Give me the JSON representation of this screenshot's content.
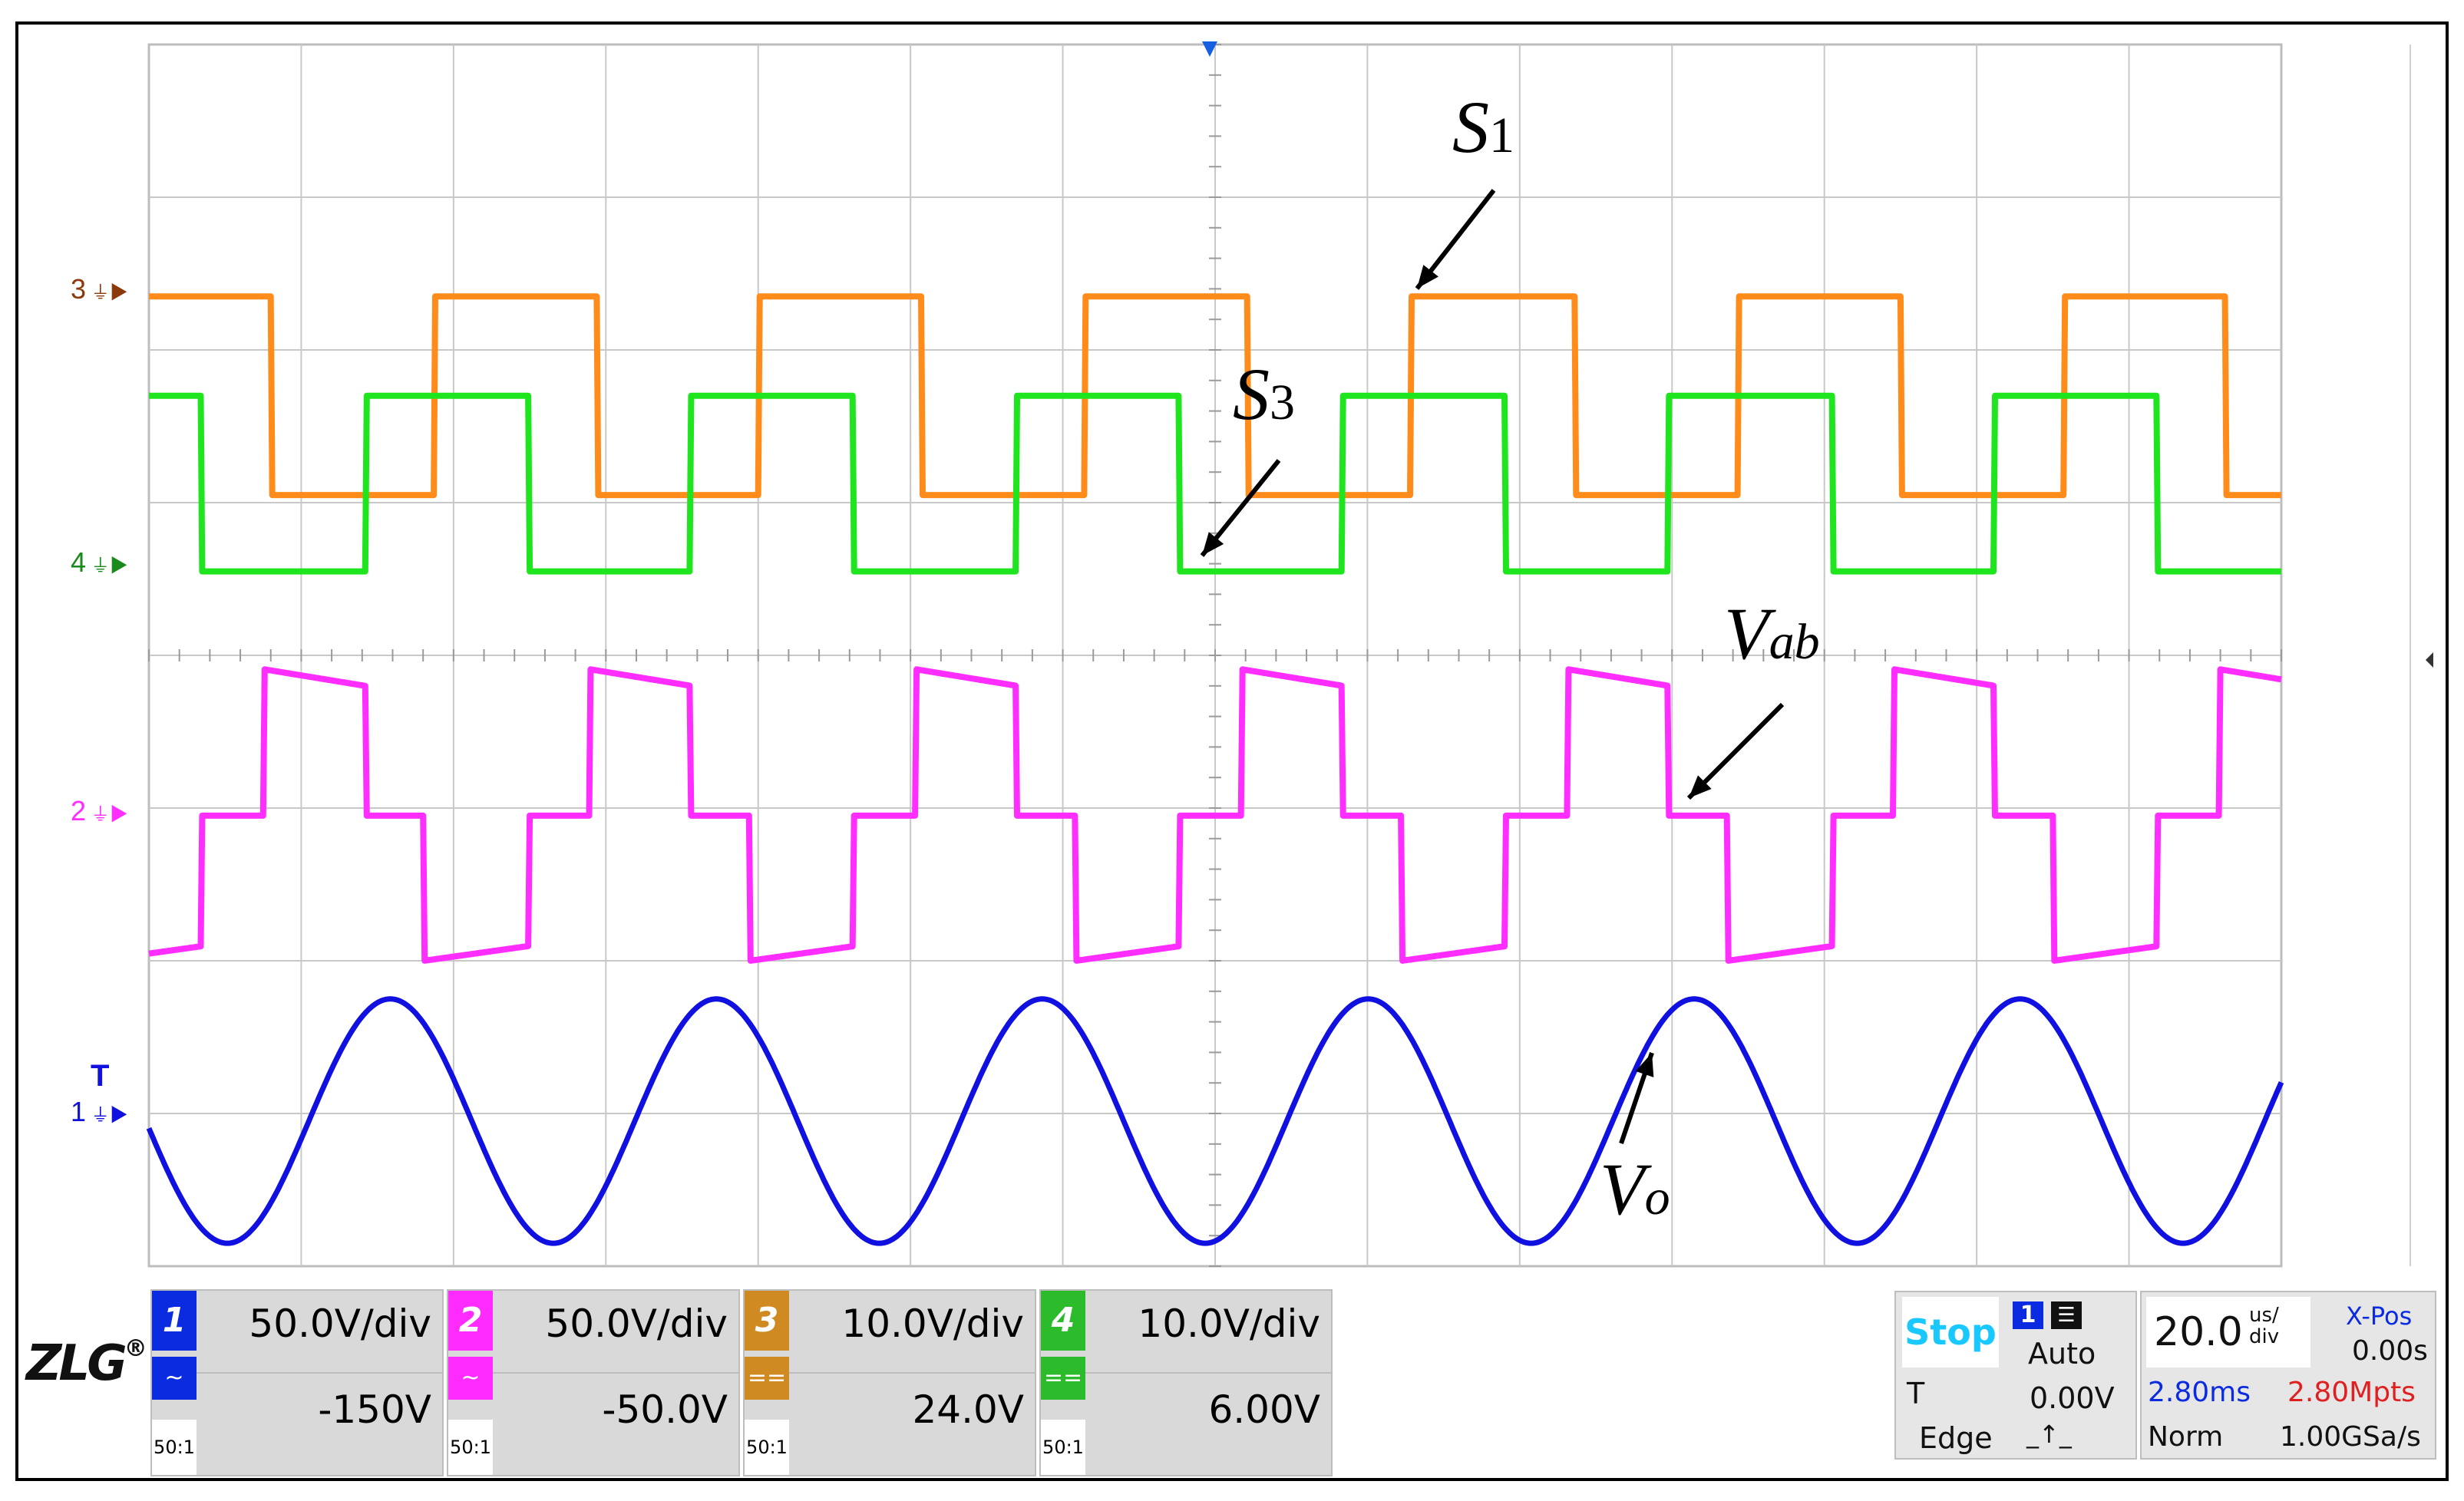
{
  "chart_data": {
    "type": "line",
    "title": "",
    "grid": true,
    "x_divisions": 14,
    "y_divisions": 8,
    "time_per_div_us": 20.0,
    "period_divisions": 2.14,
    "series": [
      {
        "name": "S1",
        "channel": "3",
        "color": "#ff8c1a",
        "kind": "square",
        "ref_division": 1.65,
        "low_div": 1.65,
        "high_div": 2.95,
        "phase_div": 0.8,
        "duty": 0.5
      },
      {
        "name": "S3",
        "channel": "4",
        "color": "#1ee51e",
        "kind": "square",
        "ref_division": 3.45,
        "low_div": 3.45,
        "high_div": 2.3,
        "phase_div": 0.35,
        "duty": 0.5,
        "inverted": true
      },
      {
        "name": "Vab",
        "channel": "2",
        "color": "#ff2dff",
        "kind": "three-level",
        "ref_division": 5.05,
        "levels_div": [
          4.1,
          5.05,
          6.0
        ],
        "phase_div": 0.35
      },
      {
        "name": "Vo",
        "channel": "1",
        "color": "#1010e0",
        "kind": "sine",
        "ref_division": 7.05,
        "amplitude_div": 0.8,
        "center_div": 7.05,
        "phase_div": 1.05
      }
    ],
    "annotations": [
      {
        "label": "S",
        "sub": "1"
      },
      {
        "label": "S",
        "sub": "3"
      },
      {
        "label": "V",
        "sub": "ab"
      },
      {
        "label": "V",
        "sub": "o"
      }
    ]
  },
  "channel_labels": [
    "3",
    "4",
    "2",
    "1"
  ],
  "trigger_marker": "T",
  "channels": [
    {
      "num": "1",
      "color": "#0a2be0",
      "scale": "50.0V/div",
      "offset": "-150V",
      "probe": "50:1",
      "coupling": "~"
    },
    {
      "num": "2",
      "color": "#ff2bff",
      "scale": "50.0V/div",
      "offset": "-50.0V",
      "probe": "50:1",
      "coupling": "~"
    },
    {
      "num": "3",
      "color": "#d08a22",
      "scale": "10.0V/div",
      "offset": "24.0V",
      "probe": "50:1",
      "coupling": "=="
    },
    {
      "num": "4",
      "color": "#2bbb2b",
      "scale": "10.0V/div",
      "offset": "6.00V",
      "probe": "50:1",
      "coupling": "=="
    }
  ],
  "acq": {
    "run_state": "Stop",
    "trig_channel": "1",
    "trig_mode": "Auto",
    "trig_label": "T",
    "trig_level": "0.00V",
    "trig_type": "Edge",
    "timebase": "20.0",
    "timebase_unit_top": "us/",
    "timebase_unit_bottom": "div",
    "xpos_label": "X-Pos",
    "xpos_value": "0.00s",
    "record_time": "2.80ms",
    "record_points": "2.80Mpts",
    "acq_mode": "Norm",
    "sample_rate": "1.00GSa/s"
  },
  "brand": "ZLG",
  "colors": {
    "grid": "#c8c8c8",
    "frame": "#000000",
    "stop": "#18c8ff"
  }
}
